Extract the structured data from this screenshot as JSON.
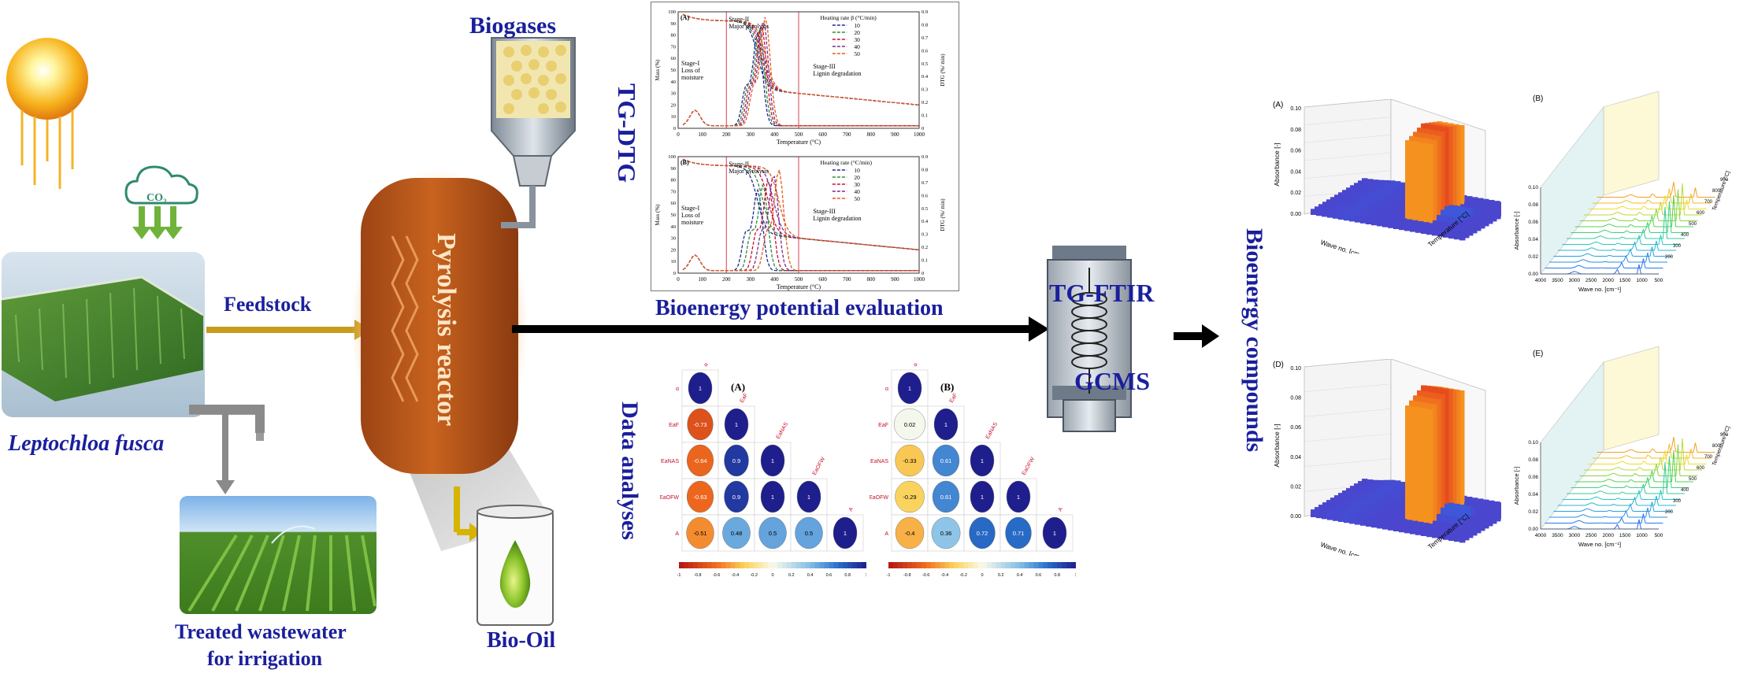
{
  "labels": {
    "species": "Leptochloa fusca",
    "feedstock": "Feedstock",
    "reactor": "Pyrolysis reactor",
    "biogases": "Biogases",
    "biooil": "Bio-Oil",
    "wastewater_1": "Treated wastewater",
    "wastewater_2": "for irrigation",
    "tgdtg": "TG-DTG",
    "bioenergy_eval": "Bioenergy potential evaluation",
    "data_analyses": "Data analyses",
    "tgftir": "TG-FTIR",
    "gcms": "GCMS",
    "bioenergy_compounds": "Bioenergy compounds",
    "co2": "CO",
    "co2_sub": "2"
  },
  "tg_panels": [
    {
      "tag": "(A)",
      "stage1": [
        "Stage-I",
        "Loss of",
        "moisture"
      ],
      "stage2": [
        "Stage-II",
        "Major pyrolysis"
      ],
      "stage3": [
        "Stage-III",
        "Lignin degradation"
      ],
      "legend_title": "Heating rate β (°C/min)",
      "legend": [
        "10",
        "20",
        "30",
        "40",
        "50"
      ],
      "xlabel": "Temperature (°C)",
      "ylabel_left": "Mass (%)",
      "ylabel_right": "DTG (%/ min)"
    },
    {
      "tag": "(B)",
      "stage1": [
        "Stage-I",
        "Loss of",
        "moisture"
      ],
      "stage2": [
        "Stage-II",
        "Major pyrolysis"
      ],
      "stage3": [
        "Stage-III",
        "Lignin degradation"
      ],
      "legend_title": "Heating rate (°C/min)",
      "legend": [
        "10",
        "20",
        "30",
        "40",
        "50"
      ],
      "xlabel": "Temperature (°C)",
      "ylabel_left": "Mass (%)",
      "ylabel_right": "DTG (%/ min)"
    }
  ],
  "tg_axis": {
    "x_ticks": [
      "0",
      "100",
      "200",
      "300",
      "400",
      "500",
      "600",
      "700",
      "800",
      "900",
      "1000"
    ],
    "y_left_ticks": [
      "0",
      "10",
      "20",
      "30",
      "40",
      "50",
      "60",
      "70",
      "80",
      "90",
      "100"
    ],
    "y_right_ticks": [
      "0",
      "0.1",
      "0.2",
      "0.3",
      "0.4",
      "0.5",
      "0.6",
      "0.7",
      "0.8",
      "0.9"
    ]
  },
  "series_colors": [
    "#1b2a8c",
    "#2e8b3d",
    "#c8102e",
    "#7a2a8a",
    "#e25a1c"
  ],
  "corr_matrices": [
    {
      "tag": "(A)",
      "vars": [
        "α",
        "EaF",
        "EaNAS",
        "EaOFW",
        "A"
      ],
      "values": [
        [
          "1"
        ],
        [
          "-0.73",
          "1"
        ],
        [
          "-0.64",
          "0.9",
          "1"
        ],
        [
          "-0.63",
          "0.9",
          "1",
          "1"
        ],
        [
          "-0.51",
          "0.48",
          "0.5",
          "0.5",
          "1"
        ]
      ]
    },
    {
      "tag": "(B)",
      "vars": [
        "α",
        "EaF",
        "EaNAS",
        "EaOFW",
        "A"
      ],
      "values": [
        [
          "1"
        ],
        [
          "0.02",
          "1"
        ],
        [
          "-0.33",
          "0.61",
          "1"
        ],
        [
          "-0.29",
          "0.61",
          "1",
          "1"
        ],
        [
          "-0.4",
          "0.36",
          "0.72",
          "0.71",
          "1"
        ]
      ]
    }
  ],
  "colorbar_ticks": [
    "-1",
    "-0.8",
    "-0.6",
    "-0.4",
    "-0.2",
    "0",
    "0.2",
    "0.4",
    "0.6",
    "0.8",
    "1"
  ],
  "ftir_3d": [
    {
      "tag": "(A)",
      "zlabel": "Absorbance [-]",
      "xlabel": "Wave no. [cm⁻¹]",
      "ylabel": "Temperature [°C]",
      "z_ticks": [
        "0.00",
        "0.02",
        "0.04",
        "0.06",
        "0.08",
        "0.10"
      ]
    },
    {
      "tag": "(D)",
      "zlabel": "Absorbance [-]",
      "xlabel": "Wave no. [cm⁻¹]",
      "ylabel": "Temperature [°C]",
      "z_ticks": [
        "0.00",
        "0.02",
        "0.04",
        "0.06",
        "0.08",
        "0.10"
      ]
    }
  ],
  "ftir_waterfall": [
    {
      "tag": "(B)",
      "zlabel": "Absorbance [-]",
      "xlabel": "Wave no. [cm⁻¹]",
      "ylabel": "Temperature [°C]",
      "z_ticks": [
        "0.00",
        "0.02",
        "0.04",
        "0.06",
        "0.08",
        "0.10"
      ],
      "x_ticks": [
        "4000",
        "3500",
        "3000",
        "2500",
        "2000",
        "1500",
        "1000",
        "500"
      ],
      "y_ticks": [
        "200",
        "300",
        "400",
        "500",
        "600",
        "700",
        "800",
        "900"
      ]
    },
    {
      "tag": "(E)",
      "zlabel": "Absorbance [-]",
      "xlabel": "Wave no. [cm⁻¹]",
      "ylabel": "Temperature [°C]",
      "z_ticks": [
        "0.00",
        "0.02",
        "0.04",
        "0.06",
        "0.08",
        "0.10"
      ],
      "x_ticks": [
        "4000",
        "3500",
        "3000",
        "2500",
        "2000",
        "1500",
        "1000",
        "500"
      ],
      "y_ticks": [
        "200",
        "300",
        "400",
        "500",
        "600",
        "700",
        "800",
        "900"
      ]
    }
  ],
  "colors": {
    "label_blue": "#1a1f9c",
    "reactor": "#c15a1f",
    "arrow_gold": "#c79b1e",
    "arrow_green": "#6fb33a",
    "arrow_gray": "#7a7a7a"
  }
}
